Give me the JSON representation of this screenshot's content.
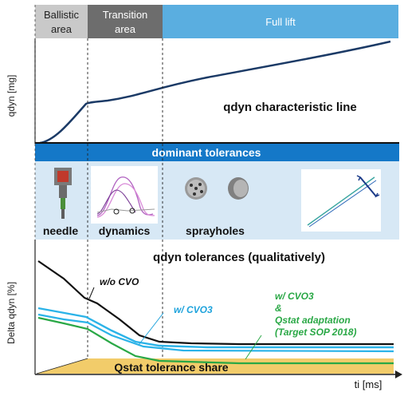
{
  "header": {
    "ballistic_line1": "Ballistic",
    "ballistic_line2": "area",
    "transition_line1": "Transition",
    "transition_line2": "area",
    "full_lift": "Full lift"
  },
  "top_chart": {
    "ylabel": "qdyn [mg]",
    "caption": "qdyn characteristic line"
  },
  "middle": {
    "banner": "dominant tolerances",
    "labels": [
      "needle",
      "dynamics",
      "sprayholes"
    ]
  },
  "bottom_chart": {
    "title": "qdyn tolerances (qualitatively)",
    "ylabel": "Delta qdyn [%]",
    "xlabel": "ti [ms]",
    "annotations": {
      "wo_cvo": "w/o CVO",
      "w_cvo3": "w/ CVO3",
      "w_cvo3_adapt_line1": "w/ CVO3",
      "w_cvo3_adapt_line2": "&",
      "w_cvo3_adapt_line3": "Qstat adaptation",
      "w_cvo3_adapt_line4": "(Target SOP 2018)"
    },
    "qstat_label": "Qstat tolerance share"
  },
  "colors": {
    "ballistic_header": "#c9c9c9",
    "transition_header": "#6d6d6d",
    "fulllift_header": "#5aaee0",
    "band_light": "#d7e8f5",
    "banner": "#1478c8",
    "qdyn_line": "#1b3a66",
    "wo_cvo_line": "#111111",
    "w_cvo3_line": "#2bb3e8",
    "adaptation_line": "#2aa846",
    "qstat_fill": "#f2cc6a",
    "annotation_cyan": "#1fa3dc",
    "annotation_green": "#2aa846"
  }
}
